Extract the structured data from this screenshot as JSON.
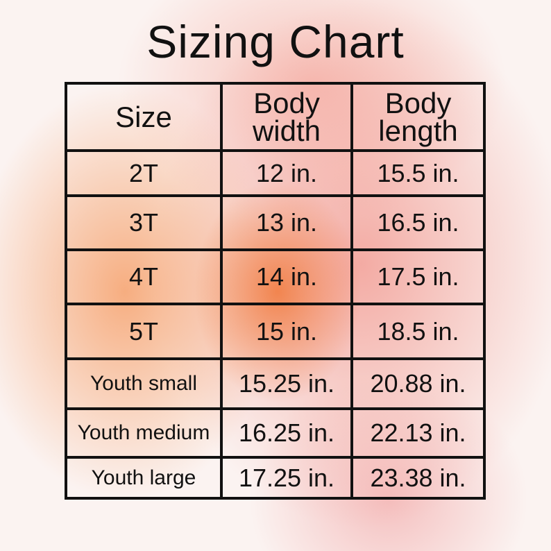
{
  "title": "Sizing Chart",
  "table": {
    "header": [
      "Size",
      "Body width",
      "Body length"
    ],
    "rows": [
      [
        "2T",
        "12 in.",
        "15.5 in."
      ],
      [
        "3T",
        "13 in.",
        "16.5 in."
      ],
      [
        "4T",
        "14 in.",
        "17.5 in."
      ],
      [
        "5T",
        "15 in.",
        "18.5 in."
      ],
      [
        "Youth small",
        "15.25 in.",
        "20.88 in."
      ],
      [
        "Youth medium",
        "16.25 in.",
        "22.13 in."
      ],
      [
        "Youth large",
        "17.25 in.",
        "23.38 in."
      ]
    ]
  }
}
